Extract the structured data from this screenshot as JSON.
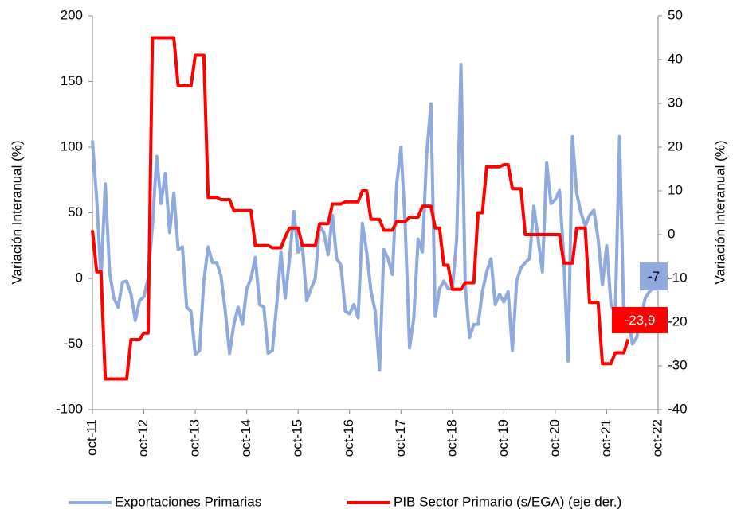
{
  "chart_data": {
    "type": "line",
    "y_label": "Variación Interanual (%)",
    "y2_label": "Variación Interanual (%)",
    "categories": [
      "oct-11",
      null,
      null,
      null,
      null,
      null,
      null,
      null,
      null,
      null,
      null,
      null,
      "oct-12",
      null,
      null,
      null,
      null,
      null,
      null,
      null,
      null,
      null,
      null,
      null,
      "oct-13",
      null,
      null,
      null,
      null,
      null,
      null,
      null,
      null,
      null,
      null,
      null,
      "oct-14",
      null,
      null,
      null,
      null,
      null,
      null,
      null,
      null,
      null,
      null,
      null,
      "oct-15",
      null,
      null,
      null,
      null,
      null,
      null,
      null,
      null,
      null,
      null,
      null,
      "oct-16",
      null,
      null,
      null,
      null,
      null,
      null,
      null,
      null,
      null,
      null,
      null,
      "oct-17",
      null,
      null,
      null,
      null,
      null,
      null,
      null,
      null,
      null,
      null,
      null,
      "oct-18",
      null,
      null,
      null,
      null,
      null,
      null,
      null,
      null,
      null,
      null,
      null,
      "oct-19",
      null,
      null,
      null,
      null,
      null,
      null,
      null,
      null,
      null,
      null,
      null,
      "oct-20",
      null,
      null,
      null,
      null,
      null,
      null,
      null,
      null,
      null,
      null,
      null,
      "oct-21",
      null,
      null,
      null,
      null,
      null,
      null,
      null,
      null,
      null,
      null,
      null,
      "oct-22"
    ],
    "series": [
      {
        "name": "Exportaciones Primarias",
        "color": "#8faadc",
        "values": [
          105,
          60,
          0,
          72,
          5,
          -15,
          -22,
          -3,
          -2,
          -12,
          -32,
          -17,
          -14,
          0,
          40,
          93,
          57,
          80,
          35,
          65,
          22,
          24,
          -22,
          -25,
          -58,
          -55,
          -2,
          24,
          12,
          12,
          2,
          -25,
          -57,
          -35,
          -22,
          -35,
          -8,
          0,
          16,
          -20,
          -22,
          -57,
          -55,
          -20,
          20,
          -15,
          15,
          51,
          20,
          25,
          -17,
          -8,
          0,
          40,
          35,
          18,
          48,
          15,
          10,
          -25,
          -27,
          -20,
          -30,
          42,
          20,
          -10,
          -25,
          -70,
          22,
          15,
          3,
          72,
          100,
          40,
          -53,
          -30,
          30,
          20,
          95,
          133,
          -29,
          -8,
          -2,
          -8,
          -8,
          30,
          163,
          -5,
          -45,
          -35,
          -35,
          -10,
          5,
          15,
          -20,
          -12,
          -18,
          -10,
          -55,
          -2,
          8,
          12,
          15,
          55,
          30,
          5,
          88,
          57,
          60,
          67,
          15,
          -63,
          108,
          65,
          50,
          40,
          48,
          52,
          30,
          -5,
          25,
          -20,
          -28,
          108,
          -30,
          -28,
          -50,
          -45,
          -30,
          -15,
          -10,
          -7,
          null
        ]
      },
      {
        "name": "PIB Sector Primario (s/EGA) (eje der.)",
        "color": "#ff0000",
        "axis": "y2",
        "values": [
          1,
          -8.5,
          -8.5,
          -33,
          -33,
          -33,
          -33,
          -33,
          -33,
          -24,
          -24,
          -24,
          -22.5,
          -22.5,
          45,
          45,
          45,
          45,
          45,
          45,
          34,
          34,
          34,
          34,
          41,
          41,
          41,
          8.5,
          8.5,
          8.5,
          8,
          8,
          8,
          5.5,
          5.5,
          5.5,
          5.5,
          5.5,
          -2.5,
          -2.5,
          -2.5,
          -2.5,
          -3,
          -3,
          -3,
          -0.5,
          1.5,
          1.5,
          1.5,
          -2.5,
          -2.5,
          -2.5,
          -2.5,
          2.5,
          2.5,
          2.5,
          7,
          7,
          7,
          7.5,
          7.5,
          7.5,
          7.5,
          10,
          10,
          3.5,
          3.5,
          3.5,
          1,
          1,
          1,
          3,
          3,
          3,
          4,
          4,
          4,
          6.5,
          6.5,
          6.5,
          1.5,
          1.5,
          -7,
          -7,
          -12.5,
          -12.5,
          -12.5,
          -11,
          -11,
          -11,
          5,
          5,
          15.5,
          15.5,
          15.5,
          15.5,
          16,
          16,
          10.5,
          10.5,
          10.5,
          0,
          0,
          0,
          0,
          0,
          0,
          0,
          0,
          0,
          -6.5,
          -6.5,
          -6.5,
          1.5,
          1.5,
          1.5,
          -15.5,
          -15.5,
          -15.5,
          -29.5,
          -29.5,
          -29.5,
          -27,
          -27,
          -27,
          -23.9,
          null,
          null,
          null,
          null,
          null,
          null,
          null
        ],
        "value_labels": [
          null,
          null,
          null,
          null,
          null,
          null,
          null,
          null,
          null,
          null,
          null,
          null,
          null,
          null,
          null,
          null,
          null,
          null,
          null,
          null,
          null,
          null,
          null,
          null,
          null,
          null,
          null,
          null,
          null,
          null,
          null,
          null,
          null,
          null,
          null,
          null,
          null,
          null,
          null,
          null,
          null,
          null,
          null,
          null,
          null,
          null,
          null,
          null,
          null,
          null,
          null,
          null,
          null,
          null,
          null,
          null,
          null,
          null,
          null,
          null,
          null,
          null,
          null,
          null,
          null,
          null,
          null,
          null,
          null,
          null,
          null,
          null,
          null,
          null,
          null,
          null,
          null,
          null,
          null,
          null,
          null,
          null,
          null,
          null,
          null,
          null,
          null,
          null,
          null,
          null,
          null,
          null,
          null,
          null,
          null,
          null,
          null,
          null,
          null,
          null,
          null,
          null,
          null,
          null,
          null,
          null,
          null,
          null,
          null,
          null,
          null,
          null,
          null,
          null,
          null,
          null,
          null,
          null,
          null,
          null,
          null,
          null,
          null,
          null,
          null,
          "-23,9",
          null,
          null,
          null,
          null,
          null,
          null,
          null
        ]
      }
    ],
    "ylim": [
      -100,
      200
    ],
    "yticks": [
      -100,
      -50,
      0,
      50,
      100,
      150,
      200
    ],
    "y2lim": [
      -40,
      50
    ],
    "y2ticks": [
      -40,
      -30,
      -20,
      -10,
      0,
      10,
      20,
      30,
      40,
      50
    ],
    "legend": "bottom"
  }
}
